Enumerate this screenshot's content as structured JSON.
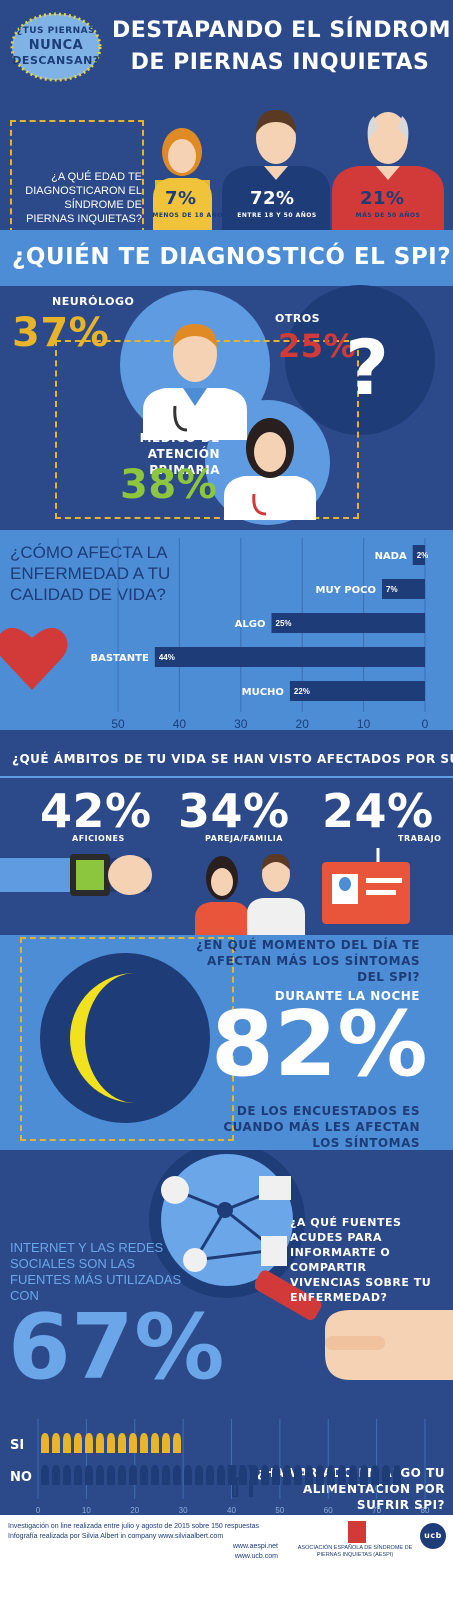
{
  "header": {
    "logo_line1": "¿TUS PIERNAS",
    "logo_line2": "NUNCA",
    "logo_line3": "DESCANSAN?",
    "title_line1": "DESTAPANDO EL SÍNDROME",
    "title_line2": "DE PIERNAS INQUIETAS"
  },
  "age": {
    "question": "¿A QUÉ EDAD TE DIAGNOSTICARON EL SÍNDROME DE PIERNAS INQUIETAS?",
    "groups": [
      {
        "percent": "7%",
        "label": "MENOS DE 18 AÑOS"
      },
      {
        "percent": "72%",
        "label": "ENTRE 18 Y 50 AÑOS"
      },
      {
        "percent": "21%",
        "label": "MÁS DE 50 AÑOS"
      }
    ]
  },
  "diagnosis": {
    "title": "¿QUIÉN TE DIAGNOSTICÓ EL SPI?",
    "items": [
      {
        "label": "NEURÓLOGO",
        "percent": "37%"
      },
      {
        "label": "OTROS",
        "percent": "25%"
      },
      {
        "label": "MÉDICO DE ATENCIÓN PRIMARIA",
        "percent": "38%"
      }
    ]
  },
  "areas": {
    "title": "¿QUÉ ÁMBITOS DE TU VIDA SE HAN VISTO AFECTADOS POR SUFRIR SPI?",
    "items": [
      {
        "percent": "42%",
        "label": "AFICIONES"
      },
      {
        "percent": "34%",
        "label": "PAREJA/FAMILIA"
      },
      {
        "percent": "24%",
        "label": "TRABAJO"
      }
    ]
  },
  "night": {
    "question": "¿EN QUÉ MOMENTO DEL DÍA TE AFECTAN MÁS LOS SÍNTOMAS DEL SPI?",
    "answer": "DURANTE LA NOCHE",
    "percent": "82%",
    "caption": "DE LOS ENCUESTADOS ES CUANDO MÁS LES AFECTAN LOS SÍNTOMAS"
  },
  "internet": {
    "question": "¿A QUÉ FUENTES ACUDES PARA INFORMARTE O COMPARTIR VIVENCIAS SOBRE TU ENFERMEDAD?",
    "caption": "INTERNET Y LAS REDES SOCIALES SON LAS FUENTES MÁS UTILIZADAS CON",
    "percent": "67%"
  },
  "footer": {
    "survey_note": "Investigación on line realizada entre julio y agosto de 2015 sobre 150 respuestas",
    "credit": "Infografía realizada por Silvia Albert in company www.silviaalbert.com",
    "url_aespi": "www.aespi.net",
    "url_ucb": "www.ucb.com",
    "aespi_name": "ASOCIACIÓN ESPAÑOLA DE SÍNDROME DE PIERNAS INQUIETAS (AESPI)",
    "ucb_logo": "ucb"
  },
  "colors": {
    "navy": "#1d3c78",
    "blue": "#2c4a8a",
    "light_blue": "#4c8dd6",
    "yellow": "#e8b52a",
    "red": "#d23a3a",
    "green": "#8cc63f"
  },
  "chart_data": [
    {
      "type": "bar",
      "orientation": "horizontal",
      "title": "¿CÓMO AFECTA LA ENFERMEDAD A TU CALIDAD DE VIDA?",
      "categories": [
        "NADA",
        "MUY POCO",
        "ALGO",
        "BASTANTE",
        "MUCHO"
      ],
      "values": [
        2,
        7,
        25,
        44,
        22
      ],
      "value_labels": [
        "2%",
        "7%",
        "25%",
        "44%",
        "22%"
      ],
      "xlim": [
        50,
        0
      ],
      "xticks": [
        "50",
        "40",
        "30",
        "20",
        "10",
        "0"
      ],
      "grid": true
    },
    {
      "type": "bar",
      "orientation": "horizontal",
      "title": "¿HA VARIADO EN ALGO TU ALIMENTACIÓN POR SUFRIR SPI?",
      "categories": [
        "SI",
        "NO"
      ],
      "values": [
        30,
        76
      ],
      "xlim": [
        0,
        80
      ],
      "xticks": [
        "0",
        "10",
        "20",
        "30",
        "40",
        "50",
        "60",
        "70",
        "80"
      ],
      "grid": true
    }
  ]
}
